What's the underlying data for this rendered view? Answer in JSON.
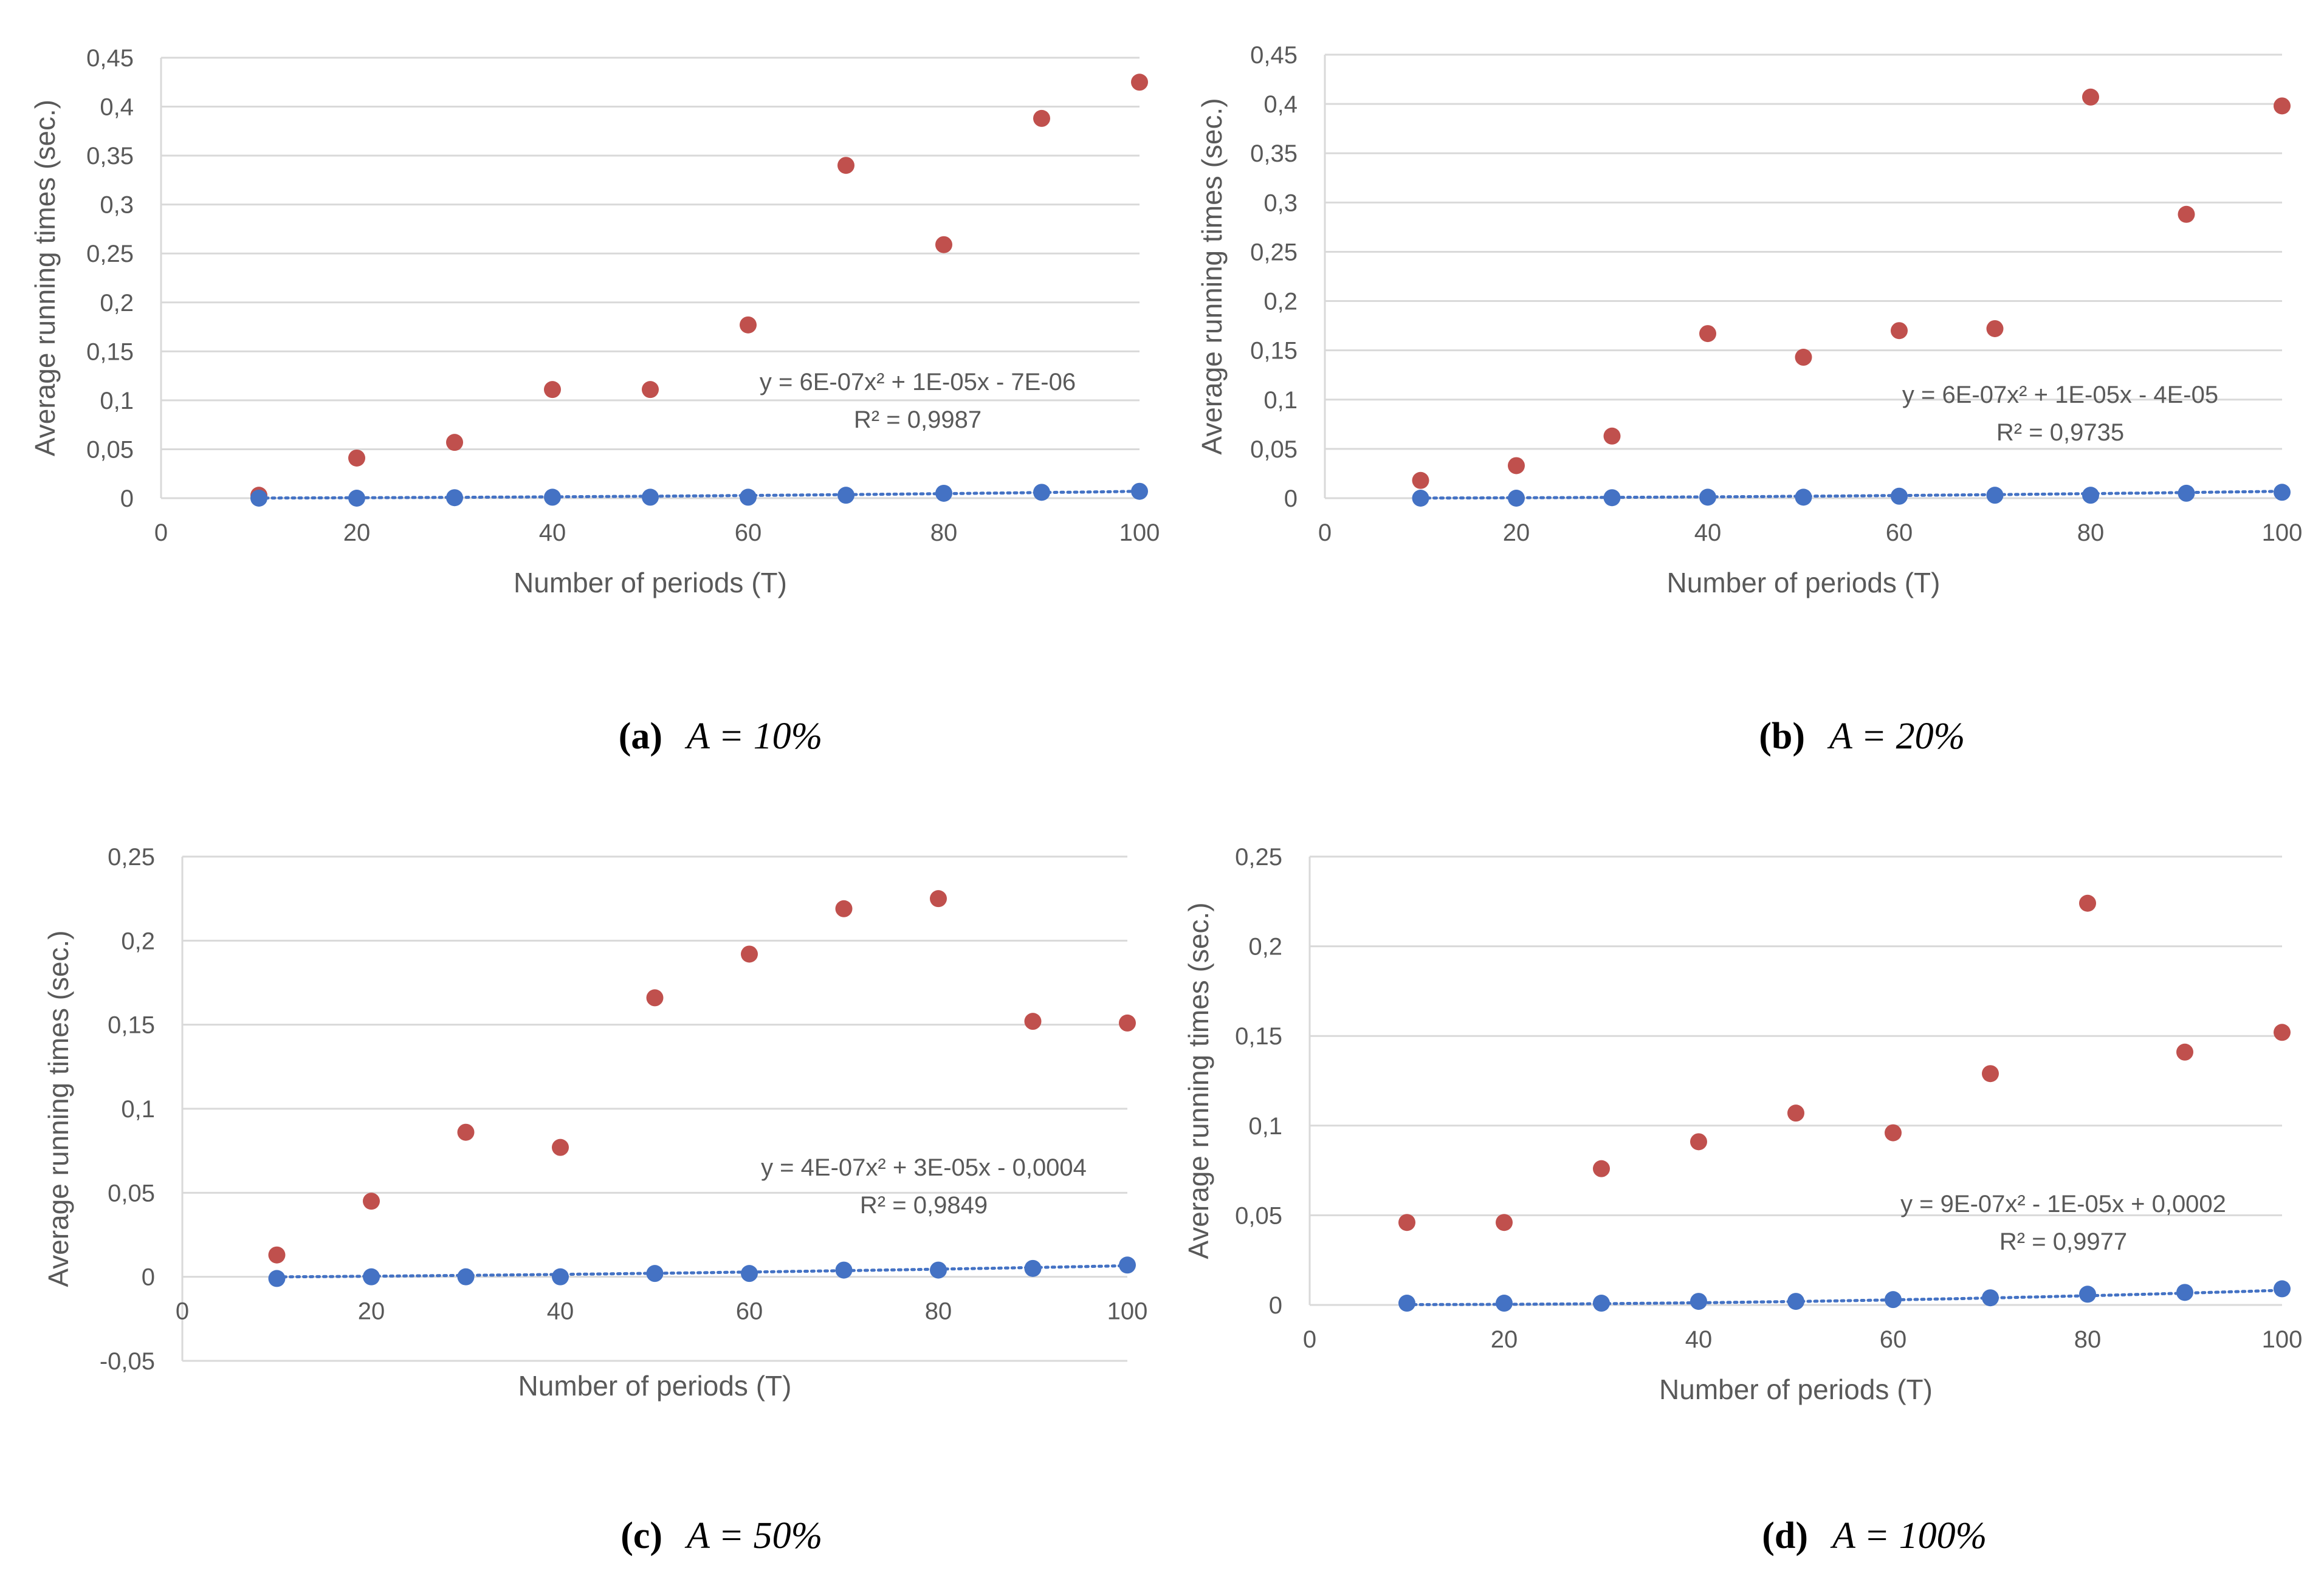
{
  "colors": {
    "red_series": "#c0504d",
    "blue_series": "#4472c4",
    "trend": "#4472c4",
    "grid": "#d9d9d9",
    "axis_text": "#595959",
    "caption": "#000000"
  },
  "chart_data": [
    {
      "type": "scatter",
      "panel": "a",
      "caption": {
        "label": "(a)",
        "math": "A = 10%"
      },
      "xlabel": "Number of periods (T)",
      "ylabel": "Average running times (sec.)",
      "xlim": [
        0,
        100
      ],
      "ylim": [
        0,
        0.45
      ],
      "xticks": [
        0,
        20,
        40,
        60,
        80,
        100
      ],
      "xtick_labels": [
        "0",
        "20",
        "40",
        "60",
        "80",
        "100"
      ],
      "yticks": [
        0,
        0.05,
        0.1,
        0.15,
        0.2,
        0.25,
        0.3,
        0.35,
        0.4,
        0.45
      ],
      "ytick_labels": [
        "0",
        "0,05",
        "0,1",
        "0,15",
        "0,2",
        "0,25",
        "0,3",
        "0,35",
        "0,4",
        "0,45"
      ],
      "grid": true,
      "series": [
        {
          "name": "red",
          "x": [
            10,
            20,
            30,
            40,
            50,
            60,
            70,
            80,
            90,
            100
          ],
          "y": [
            0.003,
            0.041,
            0.057,
            0.111,
            0.111,
            0.177,
            0.34,
            0.259,
            0.388,
            0.425
          ]
        },
        {
          "name": "blue",
          "x": [
            10,
            20,
            30,
            40,
            50,
            60,
            70,
            80,
            90,
            100
          ],
          "y": [
            0.0,
            0.0,
            0.0005,
            0.001,
            0.001,
            0.001,
            0.003,
            0.005,
            0.006,
            0.007
          ]
        }
      ],
      "trendline": {
        "series": "blue",
        "a": 6e-07,
        "b": 1e-05,
        "c": -7e-06,
        "equation": "y = 6E-07x² + 1E-05x - 7E-06",
        "r2": "R² = 0,9987"
      }
    },
    {
      "type": "scatter",
      "panel": "b",
      "caption": {
        "label": "(b)",
        "math": "A = 20%"
      },
      "xlabel": "Number of periods (T)",
      "ylabel": "Average running times (sec.)",
      "xlim": [
        0,
        100
      ],
      "ylim": [
        0,
        0.45
      ],
      "xticks": [
        0,
        20,
        40,
        60,
        80,
        100
      ],
      "xtick_labels": [
        "0",
        "20",
        "40",
        "60",
        "80",
        "100"
      ],
      "yticks": [
        0,
        0.05,
        0.1,
        0.15,
        0.2,
        0.25,
        0.3,
        0.35,
        0.4,
        0.45
      ],
      "ytick_labels": [
        "0",
        "0,05",
        "0,1",
        "0,15",
        "0,2",
        "0,25",
        "0,3",
        "0,35",
        "0,4",
        "0,45"
      ],
      "grid": true,
      "series": [
        {
          "name": "red",
          "x": [
            10,
            20,
            30,
            40,
            50,
            60,
            70,
            80,
            90,
            100
          ],
          "y": [
            0.018,
            0.033,
            0.063,
            0.167,
            0.143,
            0.17,
            0.172,
            0.407,
            0.288,
            0.398
          ]
        },
        {
          "name": "blue",
          "x": [
            10,
            20,
            30,
            40,
            50,
            60,
            70,
            80,
            90,
            100
          ],
          "y": [
            0.0,
            0.0,
            0.0005,
            0.001,
            0.001,
            0.002,
            0.003,
            0.003,
            0.005,
            0.006
          ]
        }
      ],
      "trendline": {
        "series": "blue",
        "a": 6e-07,
        "b": 1e-05,
        "c": -4e-05,
        "equation": "y = 6E-07x² + 1E-05x - 4E-05",
        "r2": "R² = 0,9735"
      }
    },
    {
      "type": "scatter",
      "panel": "c",
      "caption": {
        "label": "(c)",
        "math": "A = 50%"
      },
      "xlabel": "Number of periods (T)",
      "ylabel": "Average running times (sec.)",
      "xlim": [
        0,
        100
      ],
      "ylim": [
        -0.05,
        0.25
      ],
      "xticks": [
        0,
        20,
        40,
        60,
        80,
        100
      ],
      "xtick_labels": [
        "0",
        "20",
        "40",
        "60",
        "80",
        "100"
      ],
      "yticks": [
        -0.05,
        0,
        0.05,
        0.1,
        0.15,
        0.2,
        0.25
      ],
      "ytick_labels": [
        "-0,05",
        "0",
        "0,05",
        "0,1",
        "0,15",
        "0,2",
        "0,25"
      ],
      "grid": true,
      "series": [
        {
          "name": "red",
          "x": [
            10,
            20,
            30,
            40,
            50,
            60,
            70,
            80,
            90,
            100
          ],
          "y": [
            0.013,
            0.045,
            0.086,
            0.077,
            0.166,
            0.192,
            0.219,
            0.225,
            0.152,
            0.151
          ]
        },
        {
          "name": "blue",
          "x": [
            10,
            20,
            30,
            40,
            50,
            60,
            70,
            80,
            90,
            100
          ],
          "y": [
            -0.001,
            0.0,
            0.0,
            0.0,
            0.002,
            0.002,
            0.004,
            0.004,
            0.005,
            0.007
          ]
        }
      ],
      "trendline": {
        "series": "blue",
        "a": 4e-07,
        "b": 3e-05,
        "c": -0.0004,
        "equation": "y = 4E-07x² + 3E-05x - 0,0004",
        "r2": "R² = 0,9849"
      }
    },
    {
      "type": "scatter",
      "panel": "d",
      "caption": {
        "label": "(d)",
        "math": "A = 100%"
      },
      "xlabel": "Number of periods (T)",
      "ylabel": "Average running times (sec.)",
      "xlim": [
        0,
        100
      ],
      "ylim": [
        0,
        0.25
      ],
      "xticks": [
        0,
        20,
        40,
        60,
        80,
        100
      ],
      "xtick_labels": [
        "0",
        "20",
        "40",
        "60",
        "80",
        "100"
      ],
      "yticks": [
        0,
        0.05,
        0.1,
        0.15,
        0.2,
        0.25
      ],
      "ytick_labels": [
        "0",
        "0,05",
        "0,1",
        "0,15",
        "0,2",
        "0,25"
      ],
      "grid": true,
      "series": [
        {
          "name": "red",
          "x": [
            10,
            20,
            30,
            40,
            50,
            60,
            70,
            80,
            90,
            100
          ],
          "y": [
            0.046,
            0.046,
            0.076,
            0.091,
            0.107,
            0.096,
            0.129,
            0.224,
            0.141,
            0.152
          ]
        },
        {
          "name": "blue",
          "x": [
            10,
            20,
            30,
            40,
            50,
            60,
            70,
            80,
            90,
            100
          ],
          "y": [
            0.001,
            0.001,
            0.001,
            0.002,
            0.002,
            0.003,
            0.004,
            0.006,
            0.007,
            0.009
          ]
        }
      ],
      "trendline": {
        "series": "blue",
        "a": 9e-07,
        "b": -1e-05,
        "c": 0.0002,
        "equation": "y = 9E-07x² - 1E-05x + 0,0002",
        "r2": "R² = 0,9977"
      }
    }
  ]
}
